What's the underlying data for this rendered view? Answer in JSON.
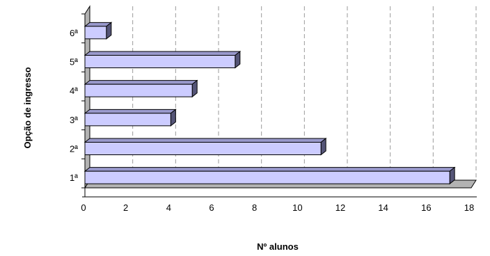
{
  "chart_data": {
    "type": "bar",
    "orientation": "horizontal",
    "style": "3d",
    "categories": [
      "1ª",
      "2ª",
      "3ª",
      "4ª",
      "5ª",
      "6ª"
    ],
    "values": [
      17,
      11,
      4,
      5,
      7,
      1
    ],
    "xlabel": "Nº alunos",
    "ylabel": "Opção de ingresso",
    "xlim": [
      0,
      18
    ],
    "xticks": [
      "0",
      "2",
      "4",
      "6",
      "8",
      "10",
      "12",
      "14",
      "16",
      "18"
    ],
    "grid": "vertical-dashed",
    "legend": "none",
    "colors": {
      "bar_front": "#ccccff",
      "bar_top": "#9999cc",
      "bar_side": "#555577",
      "floor": "#b3b3b3",
      "wall": "#ffffff",
      "grid": "#999999"
    }
  }
}
